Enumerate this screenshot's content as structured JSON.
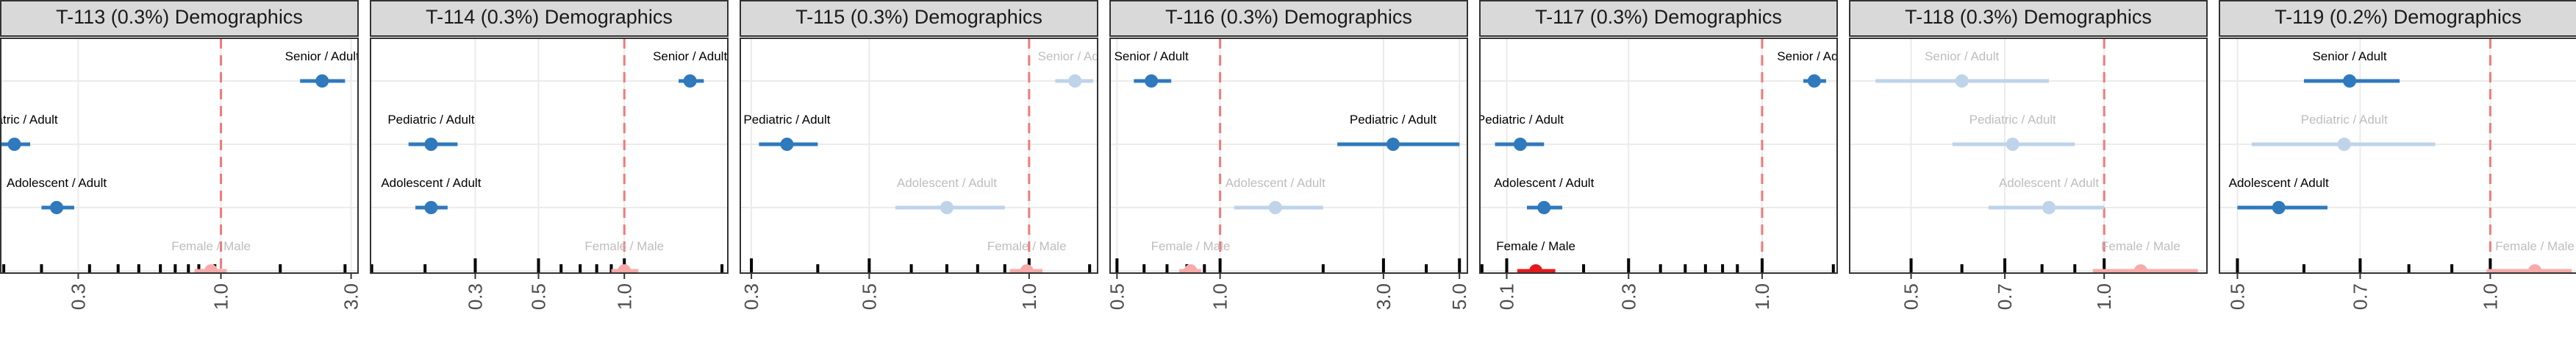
{
  "chart_data": [
    {
      "type": "scatter",
      "title": "T-113 (0.3%) Demographics",
      "x_scale": "log",
      "x_range": [
        0.155,
        3.2
      ],
      "x_ticks": [
        0.3,
        1.0,
        3.0
      ],
      "x_tick_labels": [
        "0.3",
        "1.0",
        "3.0"
      ],
      "rug": [
        0.16,
        0.22,
        0.33,
        0.42,
        0.5,
        0.6,
        0.68,
        0.76,
        0.83,
        0.95,
        1.65,
        2.85
      ],
      "reference_line": 1.0,
      "points": [
        {
          "label": "Senior / Adult",
          "estimate": 2.35,
          "ci": [
            1.95,
            2.85
          ],
          "style": "sig"
        },
        {
          "label": "Pediatric / Adult",
          "estimate": 0.175,
          "ci": [
            0.155,
            0.2
          ],
          "style": "sig"
        },
        {
          "label": "Adolescent / Adult",
          "estimate": 0.25,
          "ci": [
            0.22,
            0.29
          ],
          "style": "sig"
        },
        {
          "label": "Female / Male",
          "estimate": 0.92,
          "ci": [
            0.8,
            1.05
          ],
          "style": "faded_red"
        }
      ]
    },
    {
      "type": "scatter",
      "title": "T-114 (0.3%) Demographics",
      "x_scale": "log",
      "x_range": [
        0.128,
        2.32
      ],
      "x_ticks": [
        0.3,
        0.5,
        1.0
      ],
      "x_tick_labels": [
        "0.3",
        "0.5",
        "1.0"
      ],
      "rug": [
        0.13,
        0.2,
        0.3,
        0.5,
        0.6,
        0.7,
        0.8,
        0.9,
        1.0,
        2.2
      ],
      "reference_line": 1.0,
      "points": [
        {
          "label": "Senior / Adult",
          "estimate": 1.7,
          "ci": [
            1.55,
            1.9
          ],
          "style": "sig"
        },
        {
          "label": "Pediatric / Adult",
          "estimate": 0.21,
          "ci": [
            0.175,
            0.26
          ],
          "style": "sig"
        },
        {
          "label": "Adolescent / Adult",
          "estimate": 0.21,
          "ci": [
            0.185,
            0.24
          ],
          "style": "sig"
        },
        {
          "label": "Female / Male",
          "estimate": 1.0,
          "ci": [
            0.9,
            1.12
          ],
          "style": "faded_red"
        }
      ]
    },
    {
      "type": "scatter",
      "title": "T-115 (0.3%) Demographics",
      "x_scale": "log",
      "x_range": [
        0.285,
        1.35
      ],
      "x_ticks": [
        0.3,
        0.5,
        1.0
      ],
      "x_tick_labels": [
        "0.3",
        "0.5",
        "1.0"
      ],
      "rug": [
        0.3,
        0.4,
        0.5,
        0.6,
        0.7,
        0.8,
        0.9,
        1.0,
        1.3
      ],
      "reference_line": 1.0,
      "points": [
        {
          "label": "Senior / Adult",
          "estimate": 1.22,
          "ci": [
            1.12,
            1.32
          ],
          "style": "faded_blue"
        },
        {
          "label": "Pediatric / Adult",
          "estimate": 0.35,
          "ci": [
            0.31,
            0.4
          ],
          "style": "sig"
        },
        {
          "label": "Adolescent / Adult",
          "estimate": 0.7,
          "ci": [
            0.56,
            0.9
          ],
          "style": "faded_blue"
        },
        {
          "label": "Female / Male",
          "estimate": 0.99,
          "ci": [
            0.92,
            1.06
          ],
          "style": "faded_red"
        }
      ]
    },
    {
      "type": "scatter",
      "title": "T-116 (0.3%) Demographics",
      "x_scale": "log",
      "x_range": [
        0.475,
        5.3
      ],
      "x_ticks": [
        0.5,
        1.0,
        3.0,
        5.0
      ],
      "x_tick_labels": [
        "0.5",
        "1.0",
        "3.0",
        "5.0"
      ],
      "rug": [
        0.5,
        0.6,
        0.7,
        0.8,
        0.9,
        1.0,
        2.0,
        3.0,
        4.0,
        5.0
      ],
      "reference_line": 1.0,
      "points": [
        {
          "label": "Senior / Adult",
          "estimate": 0.63,
          "ci": [
            0.56,
            0.72
          ],
          "style": "sig"
        },
        {
          "label": "Pediatric / Adult",
          "estimate": 3.2,
          "ci": [
            2.2,
            5.0
          ],
          "style": "sig"
        },
        {
          "label": "Adolescent / Adult",
          "estimate": 1.45,
          "ci": [
            1.1,
            2.0
          ],
          "style": "faded_blue"
        },
        {
          "label": "Female / Male",
          "estimate": 0.82,
          "ci": [
            0.76,
            0.88
          ],
          "style": "faded_red"
        }
      ]
    },
    {
      "type": "scatter",
      "title": "T-117 (0.3%) Demographics",
      "x_scale": "log",
      "x_range": [
        0.078,
        1.98
      ],
      "x_ticks": [
        0.1,
        0.3,
        1.0
      ],
      "x_tick_labels": [
        "0.1",
        "0.3",
        "1.0"
      ],
      "rug": [
        0.08,
        0.1,
        0.2,
        0.3,
        0.4,
        0.5,
        0.6,
        0.7,
        0.8,
        1.0,
        1.9
      ],
      "reference_line": 1.0,
      "points": [
        {
          "label": "Senior / Adult",
          "estimate": 1.6,
          "ci": [
            1.45,
            1.78
          ],
          "style": "sig"
        },
        {
          "label": "Pediatric / Adult",
          "estimate": 0.113,
          "ci": [
            0.09,
            0.14
          ],
          "style": "sig"
        },
        {
          "label": "Adolescent / Adult",
          "estimate": 0.14,
          "ci": [
            0.12,
            0.165
          ],
          "style": "sig"
        },
        {
          "label": "Female / Male",
          "estimate": 0.13,
          "ci": [
            0.11,
            0.155
          ],
          "style": "sig_red"
        }
      ]
    },
    {
      "type": "scatter",
      "title": "T-118 (0.3%) Demographics",
      "x_scale": "log",
      "x_range": [
        0.4,
        1.45
      ],
      "x_ticks": [
        0.5,
        0.7,
        1.0
      ],
      "x_tick_labels": [
        "0.5",
        "0.7",
        "1.0"
      ],
      "rug": [
        0.5,
        0.6,
        0.7,
        0.8,
        0.9,
        1.0
      ],
      "reference_line": 1.0,
      "points": [
        {
          "label": "Senior / Adult",
          "estimate": 0.6,
          "ci": [
            0.44,
            0.82
          ],
          "style": "faded_blue"
        },
        {
          "label": "Pediatric / Adult",
          "estimate": 0.72,
          "ci": [
            0.58,
            0.9
          ],
          "style": "faded_blue"
        },
        {
          "label": "Adolescent / Adult",
          "estimate": 0.82,
          "ci": [
            0.66,
            1.0
          ],
          "style": "faded_blue"
        },
        {
          "label": "Female / Male",
          "estimate": 1.14,
          "ci": [
            0.96,
            1.4
          ],
          "style": "faded_red"
        }
      ]
    },
    {
      "type": "scatter",
      "title": "T-119 (0.2%) Demographics",
      "x_scale": "log",
      "x_range": [
        0.475,
        1.27
      ],
      "x_ticks": [
        0.5,
        0.7,
        1.0
      ],
      "x_tick_labels": [
        "0.5",
        "0.7",
        "1.0"
      ],
      "rug": [
        0.5,
        0.6,
        0.7,
        0.8,
        0.9,
        1.0
      ],
      "reference_line": 1.0,
      "points": [
        {
          "label": "Senior / Adult",
          "estimate": 0.68,
          "ci": [
            0.6,
            0.78
          ],
          "style": "sig"
        },
        {
          "label": "Pediatric / Adult",
          "estimate": 0.67,
          "ci": [
            0.52,
            0.86
          ],
          "style": "faded_blue"
        },
        {
          "label": "Adolescent / Adult",
          "estimate": 0.56,
          "ci": [
            0.5,
            0.64
          ],
          "style": "sig"
        },
        {
          "label": "Female / Male",
          "estimate": 1.13,
          "ci": [
            0.99,
            1.25
          ],
          "style": "faded_red"
        }
      ]
    }
  ],
  "colors": {
    "sig_blue": "#2f79bd",
    "faded_blue": "#bfd3e9",
    "sig_red": "#e31a1c",
    "faded_red": "#f7aaa8",
    "reference_line": "#f27a7a",
    "strip_fill": "#d9d9d9",
    "grid": "#ebebeb",
    "faded_text": "#bdbdbd"
  }
}
